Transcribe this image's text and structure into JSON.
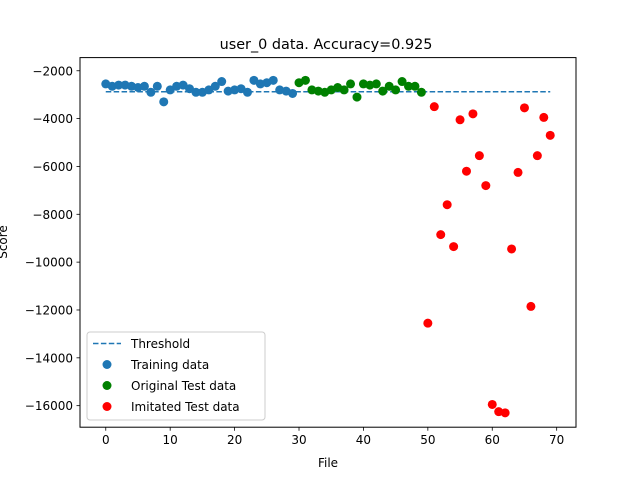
{
  "chart_data": {
    "type": "scatter",
    "title": "user_0 data. Accuracy=0.925",
    "xlabel": "File",
    "ylabel": "Score",
    "xlim": [
      -4,
      73
    ],
    "ylim": [
      -16900,
      -1450
    ],
    "xticks": [
      0,
      10,
      20,
      30,
      40,
      50,
      60,
      70
    ],
    "yticks": [
      -16000,
      -14000,
      -12000,
      -10000,
      -8000,
      -6000,
      -4000,
      -2000
    ],
    "grid": false,
    "legend_position": "lower-left",
    "threshold": {
      "name": "Threshold",
      "x": [
        0,
        69
      ],
      "y": -2880,
      "color": "#1f77b4",
      "style": "dashed"
    },
    "series": [
      {
        "name": "Training data",
        "color": "#1f77b4",
        "x": [
          0,
          1,
          2,
          3,
          4,
          5,
          6,
          7,
          8,
          9,
          10,
          11,
          12,
          13,
          14,
          15,
          16,
          17,
          18,
          19,
          20,
          21,
          22,
          23,
          24,
          25,
          26,
          27,
          28,
          29
        ],
        "y": [
          -2550,
          -2650,
          -2600,
          -2600,
          -2650,
          -2700,
          -2650,
          -2900,
          -2650,
          -3300,
          -2800,
          -2650,
          -2600,
          -2750,
          -2900,
          -2900,
          -2800,
          -2650,
          -2450,
          -2850,
          -2800,
          -2750,
          -2900,
          -2400,
          -2550,
          -2500,
          -2400,
          -2800,
          -2850,
          -2950
        ]
      },
      {
        "name": "Original Test data",
        "color": "#008000",
        "x": [
          30,
          31,
          32,
          33,
          34,
          35,
          36,
          37,
          38,
          39,
          40,
          41,
          42,
          43,
          44,
          45,
          46,
          47,
          48,
          49
        ],
        "y": [
          -2500,
          -2400,
          -2800,
          -2850,
          -2900,
          -2800,
          -2700,
          -2800,
          -2550,
          -3100,
          -2550,
          -2600,
          -2550,
          -2850,
          -2650,
          -2800,
          -2450,
          -2650,
          -2650,
          -2900
        ]
      },
      {
        "name": "Imitated Test data",
        "color": "#ff0000",
        "x": [
          50,
          51,
          52,
          53,
          54,
          55,
          56,
          57,
          58,
          59,
          60,
          61,
          62,
          63,
          64,
          65,
          66,
          67,
          68,
          69
        ],
        "y": [
          -12550,
          -3500,
          -8850,
          -7600,
          -9350,
          -4050,
          -6200,
          -3800,
          -5550,
          -6800,
          -15950,
          -16250,
          -16300,
          -9450,
          -6250,
          -3550,
          -11850,
          -5550,
          -3950,
          -4700
        ]
      }
    ]
  }
}
